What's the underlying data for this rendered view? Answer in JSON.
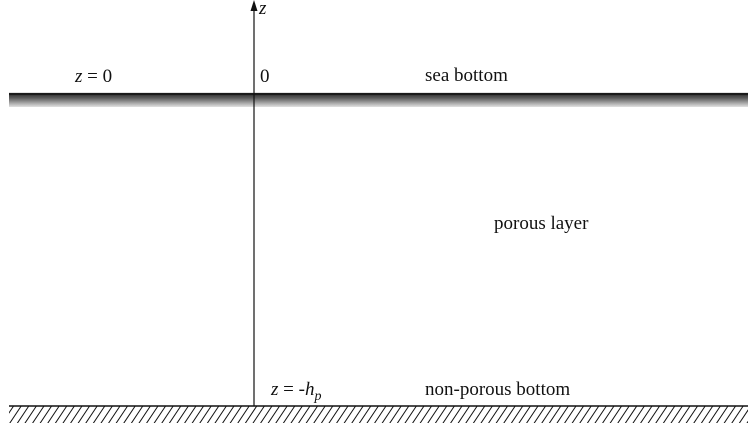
{
  "axis": {
    "label": "z",
    "origin_label": "0"
  },
  "labels": {
    "z_zero": {
      "var": "z",
      "rest": " = 0"
    },
    "sea_bottom": "sea bottom",
    "porous_layer": "porous layer",
    "z_depth": {
      "var": "z",
      "eq": " = -",
      "h": "h",
      "sub": "p"
    },
    "non_porous_bottom": "non-porous bottom"
  },
  "colors": {
    "ink": "#111111",
    "sea_bottom_dark": "#2a2a2a",
    "sea_bottom_light": "#d8d8d8"
  }
}
